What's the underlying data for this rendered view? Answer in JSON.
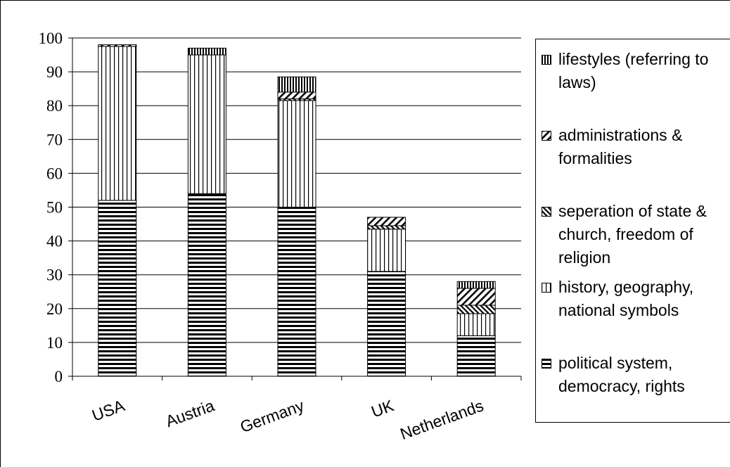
{
  "chart_data": {
    "type": "bar",
    "stacked": true,
    "categories": [
      "USA",
      "Austria",
      "Germany",
      "UK",
      "Netherlands"
    ],
    "ylim": [
      0,
      100
    ],
    "yticks": [
      0,
      10,
      20,
      30,
      40,
      50,
      60,
      70,
      80,
      90,
      100
    ],
    "grid": true,
    "legend_position": "right",
    "series": [
      {
        "name": "political system, democracy, rights",
        "pattern": "horizontal",
        "values": [
          52,
          54,
          50,
          31,
          12
        ]
      },
      {
        "name": "history, geography, national symbols",
        "pattern": "vertical",
        "values": [
          45.5,
          41,
          31.5,
          12.5,
          6.5
        ]
      },
      {
        "name": "seperation of state & church, freedom of religion",
        "pattern": "cross-diagonal",
        "values": [
          0,
          0,
          0.5,
          1,
          2.5
        ]
      },
      {
        "name": "administrations & formalities",
        "pattern": "diagonal",
        "values": [
          0.5,
          0,
          2,
          2.5,
          5
        ]
      },
      {
        "name": "lifestyles (referring to laws)",
        "pattern": "dense-vertical",
        "values": [
          0,
          2,
          4.5,
          0,
          2
        ]
      }
    ]
  },
  "legend": {
    "items": [
      {
        "label": "lifestyles (referring to laws)",
        "pattern": "dense-vertical"
      },
      {
        "label": "administrations & formalities",
        "pattern": "diagonal"
      },
      {
        "label": "seperation of state & church, freedom of religion",
        "pattern": "cross-diagonal"
      },
      {
        "label": "history, geography, national symbols",
        "pattern": "vertical"
      },
      {
        "label": "political system, democracy, rights",
        "pattern": "horizontal"
      }
    ]
  }
}
